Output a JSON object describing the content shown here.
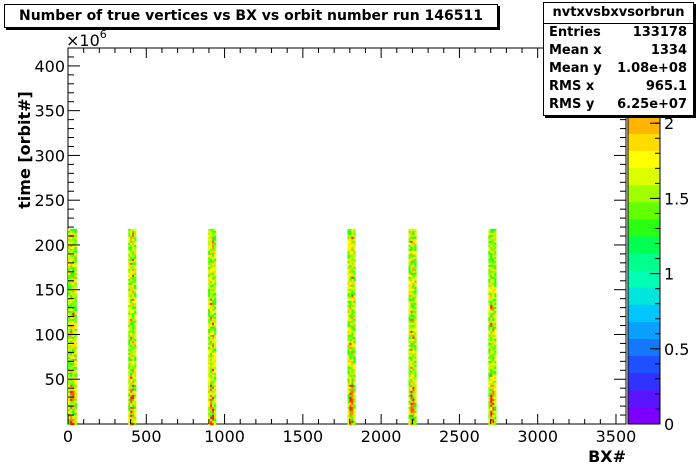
{
  "chart_data": {
    "type": "heatmap",
    "title": "Number of true vertices vs BX vs orbit number run 146511",
    "xlabel": "BX#",
    "ylabel": "time [orbit#]",
    "y_multiplier": "×10",
    "y_multiplier_exp": "6",
    "xlim": [
      0,
      3564
    ],
    "ylim": [
      0,
      420
    ],
    "x_ticks": [
      "0",
      "500",
      "1000",
      "1500",
      "2000",
      "2500",
      "3000",
      "3500"
    ],
    "x_tick_values": [
      0,
      500,
      1000,
      1500,
      2000,
      2500,
      3000,
      3500
    ],
    "y_ticks": [
      "50",
      "100",
      "150",
      "200",
      "250",
      "300",
      "350",
      "400"
    ],
    "y_tick_values": [
      50,
      100,
      150,
      200,
      250,
      300,
      350,
      400
    ],
    "bunch_trains": [
      {
        "x_start": 0,
        "x_end": 55
      },
      {
        "x_start": 385,
        "x_end": 435
      },
      {
        "x_start": 895,
        "x_end": 945
      },
      {
        "x_start": 1785,
        "x_end": 1835
      },
      {
        "x_start": 2175,
        "x_end": 2225
      },
      {
        "x_start": 2685,
        "x_end": 2735
      }
    ],
    "y_fill_max": 218,
    "colorbar": {
      "min": 0,
      "max": 2.5,
      "ticks": [
        "0",
        "0.5",
        "1",
        "1.5",
        "2"
      ],
      "tick_values": [
        0,
        0.5,
        1,
        1.5,
        2
      ],
      "colors": [
        "#7d00ff",
        "#5a14ff",
        "#3232ff",
        "#1e50ff",
        "#1478ff",
        "#0aa0ff",
        "#00c8ff",
        "#00e6dc",
        "#00ffb4",
        "#00ff8c",
        "#00ff50",
        "#28ff14",
        "#64ff00",
        "#a0ff00",
        "#dcff00",
        "#ffff00",
        "#ffdc00",
        "#ffb400",
        "#ff8c00",
        "#ff5000",
        "#ff1400",
        "#dc0000"
      ]
    }
  },
  "stats": {
    "name": "nvtxvsbxvsorbrun",
    "rows": [
      {
        "key": "Entries",
        "value": "133178"
      },
      {
        "key": "Mean x",
        "value": "1334"
      },
      {
        "key": "Mean y",
        "value": "1.08e+08"
      },
      {
        "key": "RMS x",
        "value": "965.1"
      },
      {
        "key": "RMS y",
        "value": "6.25e+07"
      }
    ]
  }
}
